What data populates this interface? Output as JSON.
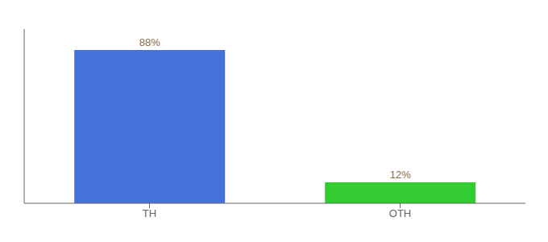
{
  "chart_data": {
    "type": "bar",
    "categories": [
      "TH",
      "OTH"
    ],
    "values": [
      88,
      12
    ],
    "value_labels": [
      "88%",
      "12%"
    ],
    "colors": [
      "#4472db",
      "#33cc33"
    ],
    "ylim": [
      0,
      100
    ],
    "data_labels": true,
    "tick_labels": "x",
    "grid": false
  }
}
